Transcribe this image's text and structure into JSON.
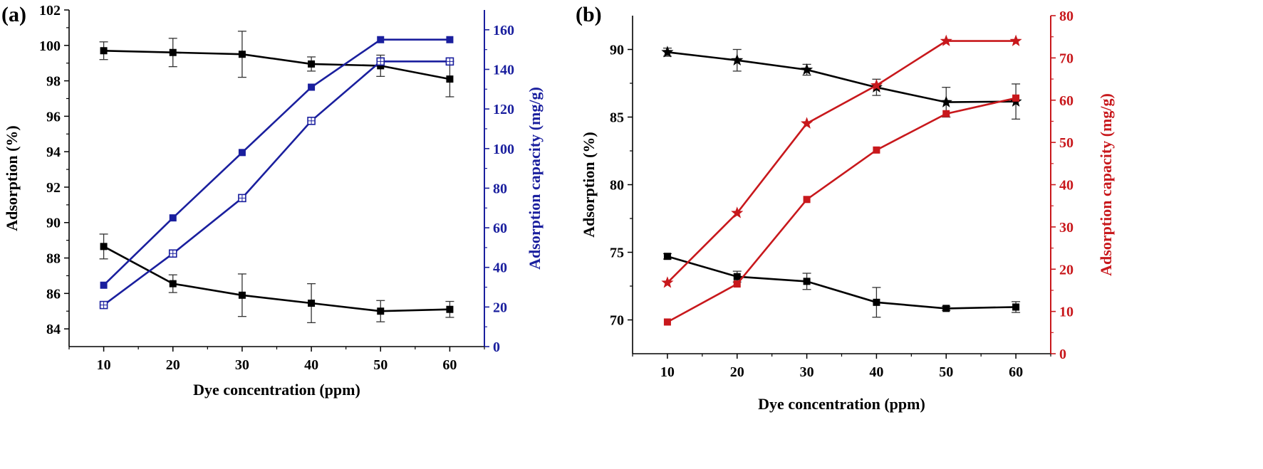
{
  "chart_data": [
    {
      "type": "line",
      "panel_label": "(a)",
      "xlabel": "Dye concentration (ppm)",
      "ylabel_left": "Adsorption (%)",
      "ylabel_right": "Adsorption capacity (mg/g)",
      "x_ticks": [
        "10",
        "20",
        "30",
        "40",
        "50",
        "60"
      ],
      "left_ticks": [
        "84",
        "86",
        "88",
        "90",
        "92",
        "94",
        "96",
        "98",
        "100",
        "102"
      ],
      "right_ticks": [
        "0",
        "20",
        "40",
        "60",
        "80",
        "100",
        "120",
        "140",
        "160"
      ],
      "xlim": [
        5,
        65
      ],
      "ylim_left": [
        83,
        102
      ],
      "ylim_right": [
        0,
        170
      ],
      "right_axis_color": "#1a1f9e",
      "series": [
        {
          "name": "adsorption-high",
          "axis": "left",
          "color": "#000000",
          "marker": "square-filled",
          "x": [
            10,
            20,
            30,
            40,
            50,
            60
          ],
          "y": [
            99.7,
            99.6,
            99.5,
            98.95,
            98.85,
            98.1
          ],
          "err": [
            0.5,
            0.8,
            1.3,
            0.4,
            0.6,
            1.0
          ]
        },
        {
          "name": "adsorption-low",
          "axis": "left",
          "color": "#000000",
          "marker": "square-filled",
          "x": [
            10,
            20,
            30,
            40,
            50,
            60
          ],
          "y": [
            88.65,
            86.55,
            85.9,
            85.45,
            85.0,
            85.1
          ],
          "err": [
            0.7,
            0.5,
            1.2,
            1.1,
            0.6,
            0.45
          ]
        },
        {
          "name": "capacity-filled",
          "axis": "right",
          "color": "#1a1f9e",
          "marker": "square-filled",
          "x": [
            10,
            20,
            30,
            40,
            50,
            60
          ],
          "y": [
            31,
            65,
            98,
            131,
            155,
            155
          ]
        },
        {
          "name": "capacity-open",
          "axis": "right",
          "color": "#1a1f9e",
          "marker": "square-open",
          "x": [
            10,
            20,
            30,
            40,
            50,
            60
          ],
          "y": [
            21,
            47,
            75,
            114,
            144,
            144
          ]
        }
      ]
    },
    {
      "type": "line",
      "panel_label": "(b)",
      "xlabel": "Dye concentration (ppm)",
      "ylabel_left": "Adsorption (%)",
      "ylabel_right": "Adsorption capacity (mg/g)",
      "x_ticks": [
        "10",
        "20",
        "30",
        "40",
        "50",
        "60"
      ],
      "left_ticks": [
        "70",
        "75",
        "80",
        "85",
        "90"
      ],
      "right_ticks": [
        "0",
        "10",
        "20",
        "30",
        "40",
        "50",
        "60",
        "70",
        "80"
      ],
      "xlim": [
        5,
        65
      ],
      "ylim_left": [
        67.5,
        92.5
      ],
      "ylim_right": [
        0,
        80
      ],
      "right_axis_color": "#c8181c",
      "series": [
        {
          "name": "adsorption-star",
          "axis": "left",
          "color": "#000000",
          "marker": "star",
          "x": [
            10,
            20,
            30,
            40,
            50,
            60
          ],
          "y": [
            89.8,
            89.2,
            88.5,
            87.2,
            86.1,
            86.15
          ],
          "err": [
            0.3,
            0.8,
            0.4,
            0.6,
            1.1,
            1.3
          ]
        },
        {
          "name": "adsorption-square",
          "axis": "left",
          "color": "#000000",
          "marker": "square-filled",
          "x": [
            10,
            20,
            30,
            40,
            50,
            60
          ],
          "y": [
            74.7,
            73.2,
            72.85,
            71.3,
            70.85,
            70.95
          ],
          "err": [
            0.2,
            0.4,
            0.6,
            1.1,
            0.15,
            0.4
          ]
        },
        {
          "name": "capacity-star",
          "axis": "right",
          "color": "#c8181c",
          "marker": "star",
          "x": [
            10,
            20,
            30,
            40,
            50,
            60
          ],
          "y": [
            16.8,
            33.3,
            54.5,
            63.5,
            74.0,
            74.0
          ]
        },
        {
          "name": "capacity-square",
          "axis": "right",
          "color": "#c8181c",
          "marker": "square-filled",
          "x": [
            10,
            20,
            30,
            40,
            50,
            60
          ],
          "y": [
            7.5,
            16.5,
            36.5,
            48.2,
            56.8,
            60.5
          ]
        }
      ]
    }
  ]
}
